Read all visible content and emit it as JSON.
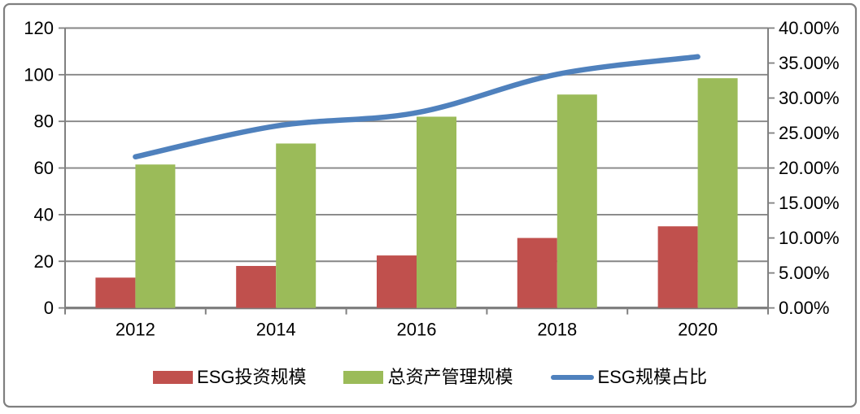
{
  "chart_data": {
    "type": "bar",
    "title": "",
    "categories": [
      "2012",
      "2014",
      "2016",
      "2018",
      "2020"
    ],
    "series": [
      {
        "name": "ESG投资规模",
        "type": "bar",
        "axis": "left",
        "color": "#C0504D",
        "values": [
          13,
          18,
          22.5,
          30,
          35
        ]
      },
      {
        "name": "总资产管理规模",
        "type": "bar",
        "axis": "left",
        "color": "#9BBB59",
        "values": [
          61.5,
          70.5,
          82,
          91.5,
          98.5
        ]
      },
      {
        "name": "ESG规模占比",
        "type": "line",
        "axis": "right",
        "color": "#4F81BD",
        "unit": "%",
        "values": [
          21.6,
          26.0,
          27.9,
          33.4,
          35.9
        ]
      }
    ],
    "left_axis": {
      "min": 0,
      "max": 120,
      "step": 20,
      "tick_labels": [
        "0",
        "20",
        "40",
        "60",
        "80",
        "100",
        "120"
      ]
    },
    "right_axis": {
      "min": 0,
      "max": 40,
      "step": 5,
      "tick_labels": [
        "0.00%",
        "5.00%",
        "10.00%",
        "15.00%",
        "20.00%",
        "25.00%",
        "30.00%",
        "35.00%",
        "40.00%"
      ]
    },
    "legend": {
      "position": "bottom",
      "items": [
        "ESG投资规模",
        "总资产管理规模",
        "ESG规模占比"
      ]
    },
    "grid": true,
    "colors": {
      "gridline": "#868686",
      "axis": "#808080",
      "border": "#7F7F7F",
      "text": "#000000",
      "background": "#FFFFFF"
    }
  }
}
